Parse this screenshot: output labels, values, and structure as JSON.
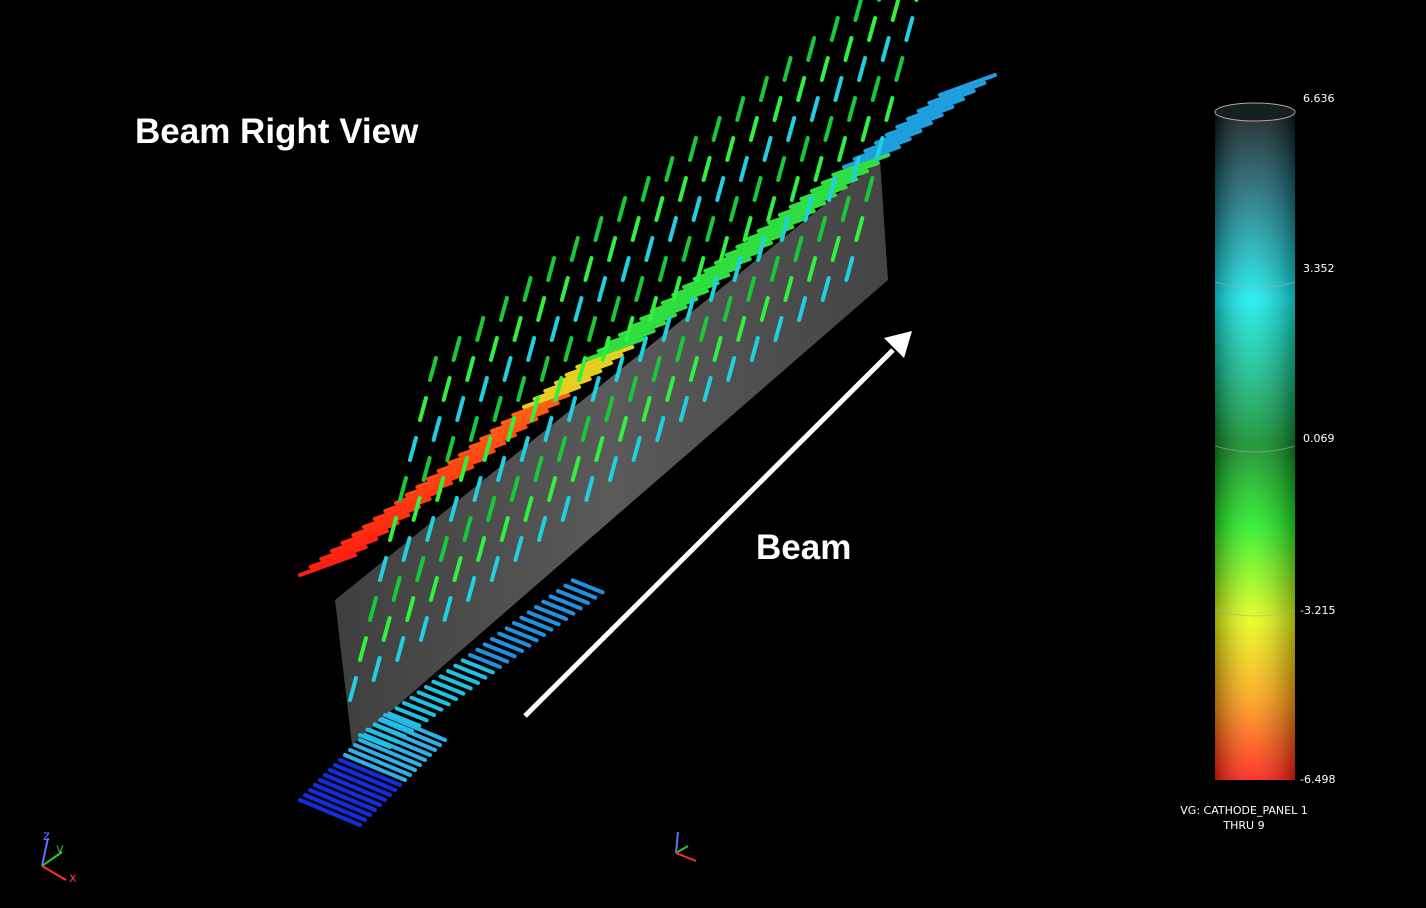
{
  "view": {
    "title": "Beam Right View",
    "beam_label": "Beam"
  },
  "legend": {
    "max": "6.636",
    "tick_high": "3.352",
    "tick_mid": "0.069",
    "tick_low": "-3.215",
    "min": "-6.498",
    "caption_line1": "VG: CATHODE_PANEL 1",
    "caption_line2": "THRU 9",
    "colors": [
      "#0a1414",
      "#1a6a78",
      "#10e8ee",
      "#10c0a0",
      "#0a8a20",
      "#20f020",
      "#e8ff10",
      "#ffb010",
      "#ff1a10"
    ]
  },
  "triad": {
    "x_label": "x",
    "y_label": "y",
    "z_label": "z"
  },
  "icons": {
    "axis_triad": "xyz-axis-triad-icon",
    "center_triad": "center-axis-triad-icon"
  }
}
